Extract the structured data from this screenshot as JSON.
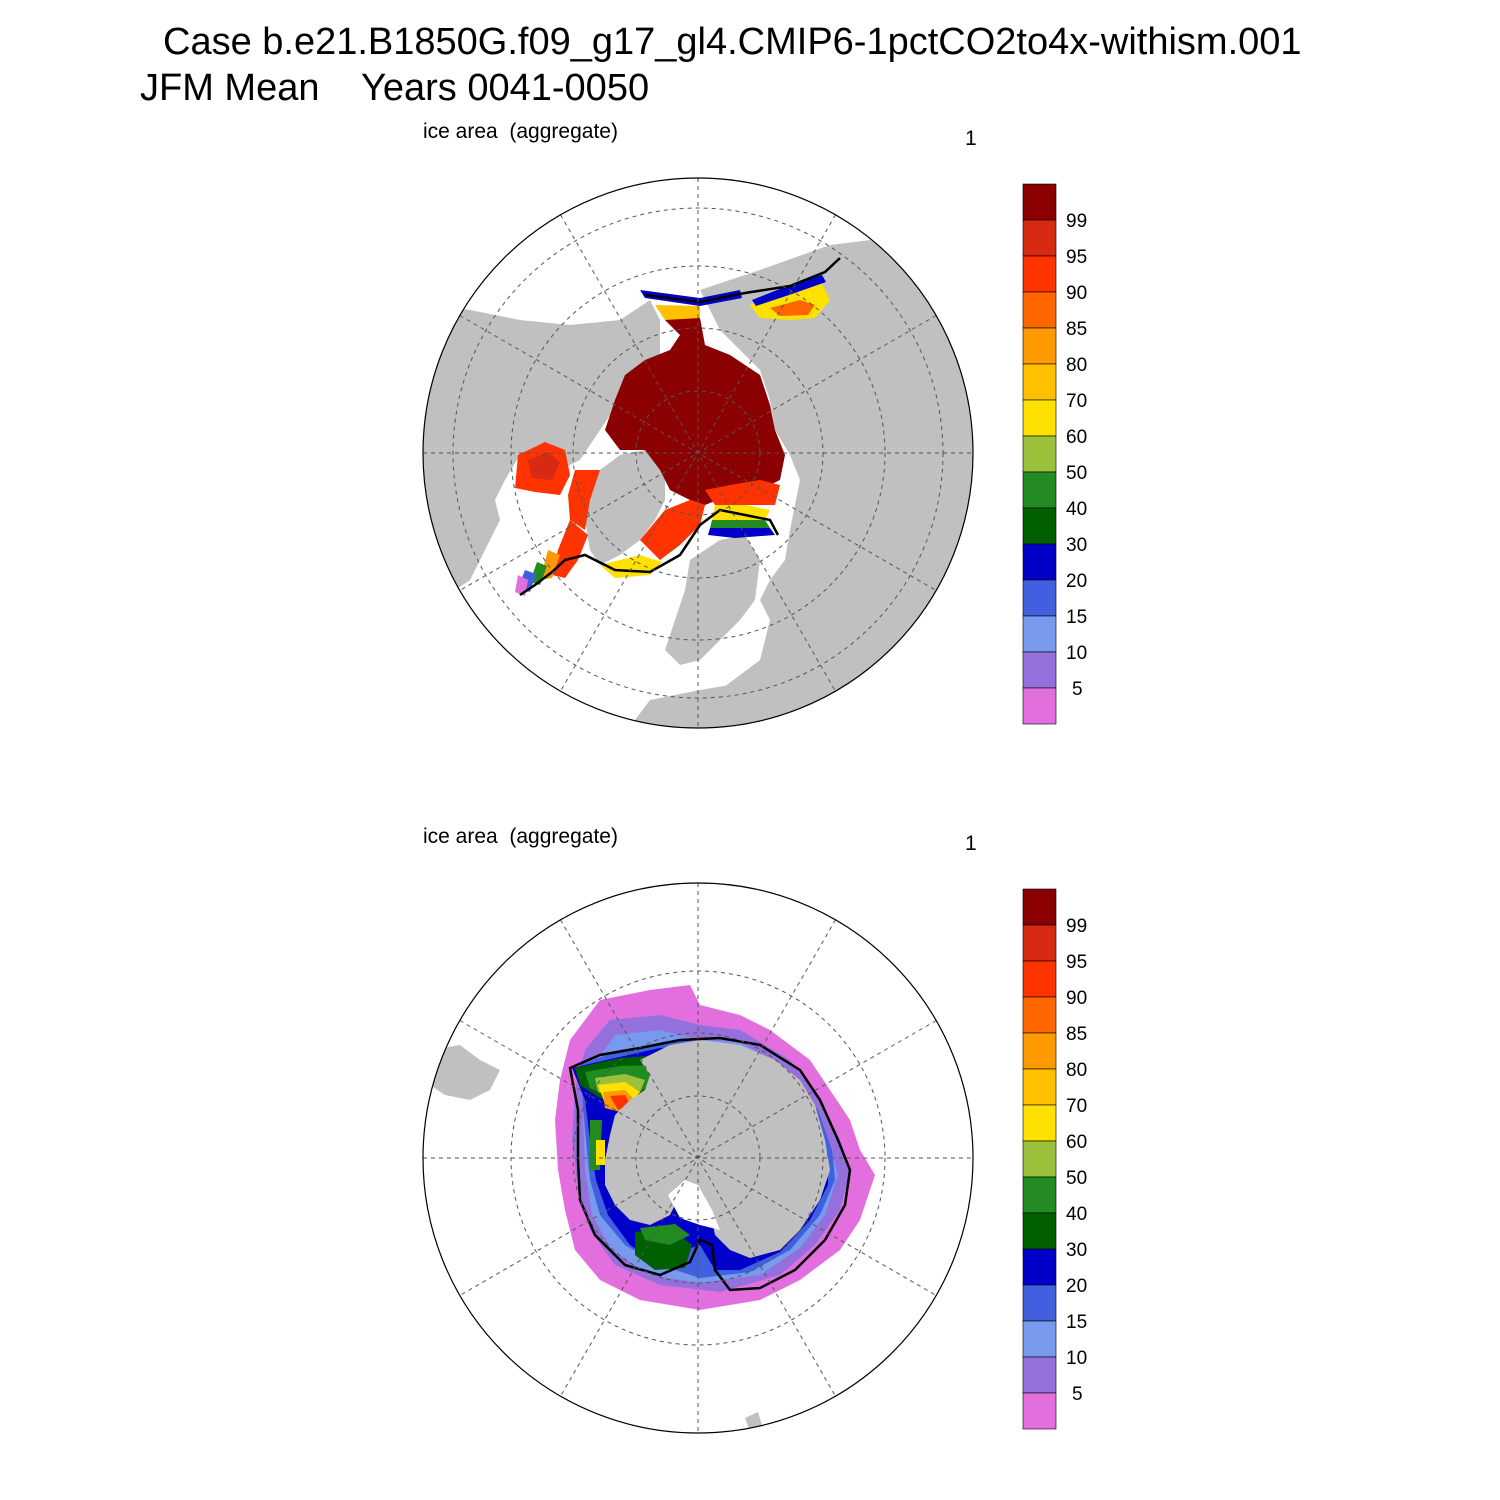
{
  "figure": {
    "title_line1": "Case b.e21.B1850G.f09_g17_gl4.CMIP6-1pctCO2to4x-withism.001",
    "title_line2": "JFM Mean    Years 0041-0050"
  },
  "panels": [
    {
      "id": "north",
      "left_label": "ice area  (aggregate)",
      "right_label": "1"
    },
    {
      "id": "south",
      "left_label": "ice area  (aggregate)",
      "right_label": "1"
    }
  ],
  "colorbar": {
    "labels": [
      "99",
      "95",
      "90",
      "85",
      "80",
      "70",
      "60",
      "50",
      "40",
      "30",
      "20",
      "15",
      "10",
      "5"
    ],
    "colors": [
      "#8b0000",
      "#d62a13",
      "#ff3300",
      "#ff6600",
      "#ff9900",
      "#ffc000",
      "#ffe100",
      "#9bc03a",
      "#228b22",
      "#006000",
      "#0000c8",
      "#4060e0",
      "#7799ee",
      "#9370db",
      "#e36fdf"
    ]
  },
  "colors": {
    "land": "#c0c0c0",
    "ocean": "#ffffff",
    "edge_line": "#000000"
  }
}
